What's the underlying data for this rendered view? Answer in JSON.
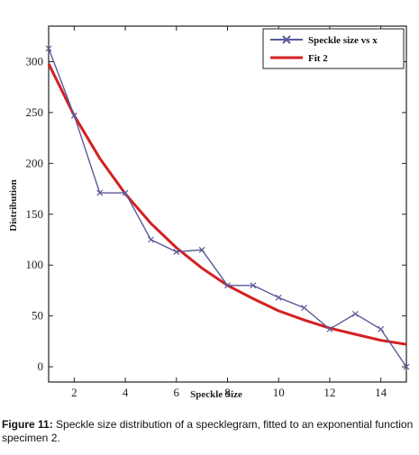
{
  "chart_data": {
    "type": "line",
    "title": "",
    "xlabel": "Speckle Size",
    "ylabel": "Distribution",
    "xlim": [
      1,
      15
    ],
    "ylim": [
      -15,
      335
    ],
    "xticks": [
      2,
      4,
      6,
      8,
      10,
      12,
      14
    ],
    "yticks": [
      0,
      50,
      100,
      150,
      200,
      250,
      300
    ],
    "grid": false,
    "legend_position": "top-right",
    "series": [
      {
        "name": "Speckle size vs x",
        "type": "line",
        "marker": "x",
        "color": "#5a5a9a",
        "x": [
          1,
          2,
          3,
          4,
          5,
          6,
          7,
          8,
          9,
          10,
          11,
          12,
          13,
          14,
          15
        ],
        "y": [
          313,
          247,
          171,
          171,
          125,
          113,
          115,
          80,
          80,
          68,
          58,
          37,
          52,
          37,
          0
        ]
      },
      {
        "name": "Fit 2",
        "type": "line",
        "color": "#d42020",
        "x": [
          1,
          2,
          3,
          4,
          5,
          6,
          7,
          8,
          9,
          10,
          11,
          12,
          13,
          14,
          15
        ],
        "y": [
          298,
          247,
          205,
          170,
          141,
          117,
          97,
          80,
          67,
          55,
          46,
          38,
          32,
          26,
          22
        ]
      }
    ]
  },
  "caption": {
    "lead": "Figure 11:",
    "text": " Speckle size distribution of a specklegram, fitted to an exponential function specimen 2."
  },
  "colors": {
    "legend_series_1": "#5a5a9a",
    "legend_series_2": "#d42020"
  }
}
